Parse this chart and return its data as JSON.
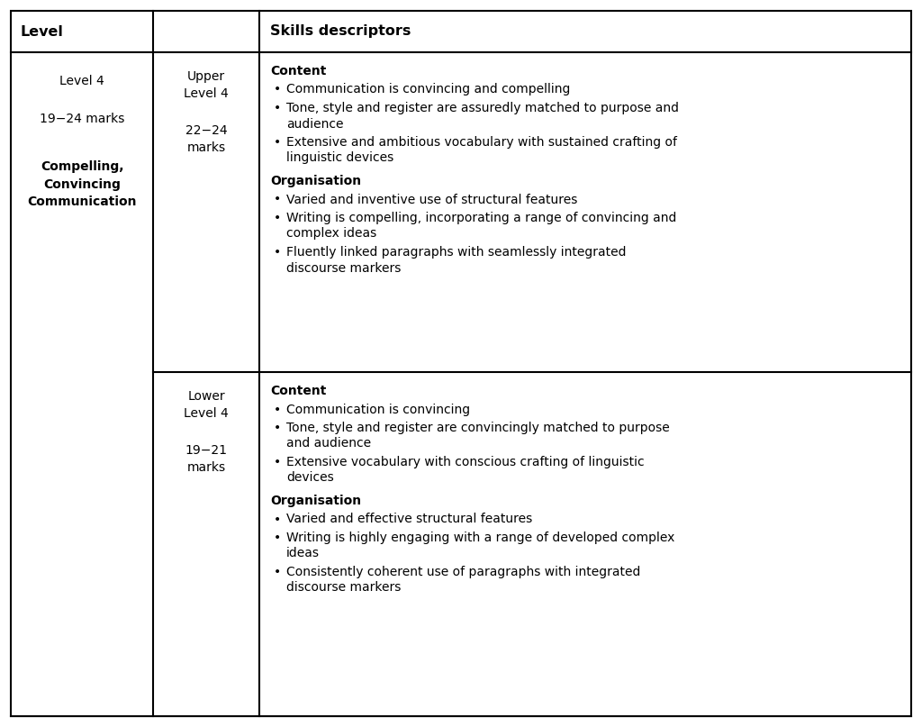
{
  "background_color": "#ffffff",
  "border_color": "#000000",
  "header": {
    "col1": "Level",
    "col3": "Skills descriptors"
  },
  "col1_texts": {
    "line1": "Level 4",
    "line2": "19−24 marks",
    "line3_bold": "Compelling,\nConvincing\nCommunication"
  },
  "row1": {
    "col2_top": "Upper\nLevel 4",
    "col2_bot": "22−24\nmarks",
    "heading1": "Content",
    "bullets1": [
      "Communication is convincing and compelling",
      "Tone, style and register are assuredly matched to purpose and\naudience",
      "Extensive and ambitious vocabulary with sustained crafting of\nlinguistic devices"
    ],
    "heading2": "Organisation",
    "bullets2": [
      "Varied and inventive use of structural features",
      "Writing is compelling, incorporating a range of convincing and\ncomplex ideas",
      "Fluently linked paragraphs with seamlessly integrated\ndiscourse markers"
    ]
  },
  "row2": {
    "col2_top": "Lower\nLevel 4",
    "col2_bot": "19−21\nmarks",
    "heading1": "Content",
    "bullets1": [
      "Communication is convincing",
      "Tone, style and register are convincingly matched to purpose\nand audience",
      "Extensive vocabulary with conscious crafting of linguistic\ndevices"
    ],
    "heading2": "Organisation",
    "bullets2": [
      "Varied and effective structural features",
      "Writing is highly engaging with a range of developed complex\nideas",
      "Consistently coherent use of paragraphs with integrated\ndiscourse markers"
    ]
  },
  "lw": 1.5,
  "fs_header": 11.5,
  "fs_body": 10.0,
  "text_color": "#000000"
}
